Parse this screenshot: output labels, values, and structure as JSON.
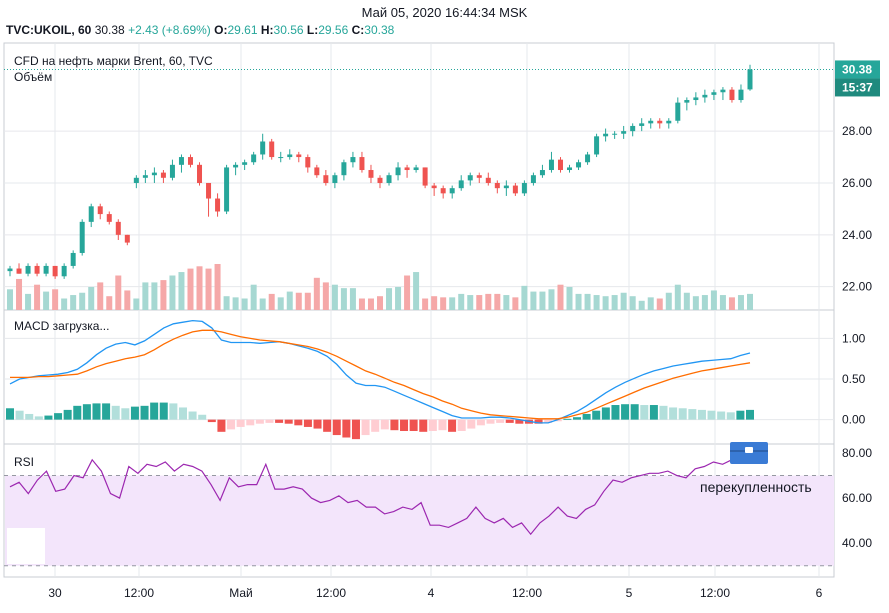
{
  "header": {
    "datetime": "Май 05, 2020 16:44:34 MSK",
    "symbol": "TVC:UKOIL, 60",
    "last": "30.38",
    "change": "+2.43 (+8.69%)",
    "o_label": "O:",
    "o_value": "29.61",
    "h_label": "H:",
    "h_value": "30.56",
    "l_label": "L:",
    "l_value": "29.56",
    "c_label": "C:",
    "c_value": "30.38"
  },
  "colors": {
    "up": "#26a69a",
    "down": "#ef5350",
    "vol_up": "#a6d8d2",
    "vol_down": "#f5a8a8",
    "macd": "#2196f3",
    "signal": "#ff6d00",
    "rsi": "#9c27b0",
    "rsi_band": "#f3e5fb",
    "grid": "#e6e8ec"
  },
  "main_pane": {
    "title": "CFD на нефть марки Brent, 60, TVC",
    "volume_label": "Объём",
    "price_badge": "30.38",
    "time_badge": "15:37"
  },
  "macd_pane": {
    "title": "MACD загрузка..."
  },
  "rsi_pane": {
    "title": "RSI",
    "overbought_label": "перекупленность"
  },
  "chart_data": [
    {
      "type": "candlestick",
      "title": "CFD на нефть марки Brent, 60, TVC",
      "y_ticks": [
        "30.38",
        "28.00",
        "26.00",
        "24.00",
        "22.00"
      ],
      "ylim": [
        21.1,
        31.4
      ],
      "x_tick_labels": [
        "30",
        "12:00",
        "Май",
        "12:00",
        "4",
        "12:00",
        "5",
        "12:00",
        "6"
      ],
      "candles": [
        [
          22.6,
          22.8,
          22.4,
          22.7
        ],
        [
          22.7,
          22.9,
          22.5,
          22.5
        ],
        [
          22.5,
          22.9,
          22.4,
          22.8
        ],
        [
          22.8,
          22.9,
          22.4,
          22.5
        ],
        [
          22.5,
          22.9,
          22.4,
          22.8
        ],
        [
          22.8,
          22.8,
          22.3,
          22.4
        ],
        [
          22.4,
          22.9,
          22.3,
          22.8
        ],
        [
          22.8,
          23.4,
          22.7,
          23.3
        ],
        [
          23.3,
          24.6,
          23.2,
          24.5
        ],
        [
          24.5,
          25.2,
          24.3,
          25.1
        ],
        [
          25.1,
          25.2,
          24.6,
          24.8
        ],
        [
          24.8,
          24.9,
          24.4,
          24.5
        ],
        [
          24.5,
          24.6,
          23.8,
          24.0
        ],
        [
          24.0,
          24.0,
          23.6,
          23.7
        ],
        [
          26.0,
          26.3,
          25.8,
          26.2
        ],
        [
          26.2,
          26.5,
          26.0,
          26.3
        ],
        [
          26.3,
          26.6,
          26.0,
          26.4
        ],
        [
          26.4,
          26.5,
          26.0,
          26.2
        ],
        [
          26.2,
          26.9,
          26.1,
          26.7
        ],
        [
          26.7,
          27.1,
          26.4,
          27.0
        ],
        [
          27.0,
          27.1,
          26.6,
          26.7
        ],
        [
          26.7,
          26.8,
          25.9,
          26.0
        ],
        [
          26.0,
          26.0,
          24.7,
          25.4
        ],
        [
          25.4,
          25.6,
          24.7,
          24.9
        ],
        [
          24.9,
          26.7,
          24.8,
          26.6
        ],
        [
          26.6,
          26.8,
          26.3,
          26.7
        ],
        [
          26.7,
          26.9,
          26.5,
          26.8
        ],
        [
          26.8,
          27.2,
          26.7,
          27.1
        ],
        [
          27.1,
          27.9,
          26.9,
          27.6
        ],
        [
          27.6,
          27.7,
          26.9,
          27.0
        ],
        [
          27.0,
          27.2,
          26.8,
          27.0
        ],
        [
          27.0,
          27.3,
          26.9,
          27.1
        ],
        [
          27.1,
          27.2,
          26.8,
          27.0
        ],
        [
          27.0,
          27.1,
          26.4,
          26.6
        ],
        [
          26.6,
          26.7,
          26.2,
          26.3
        ],
        [
          26.3,
          26.5,
          25.9,
          26.0
        ],
        [
          26.0,
          26.4,
          25.8,
          26.3
        ],
        [
          26.3,
          26.9,
          26.1,
          26.8
        ],
        [
          26.8,
          27.2,
          26.6,
          27.0
        ],
        [
          27.0,
          27.2,
          26.4,
          26.5
        ],
        [
          26.5,
          26.7,
          26.0,
          26.2
        ],
        [
          26.2,
          26.3,
          25.8,
          26.0
        ],
        [
          26.0,
          26.4,
          25.9,
          26.3
        ],
        [
          26.3,
          26.8,
          26.1,
          26.6
        ],
        [
          26.6,
          26.7,
          26.2,
          26.5
        ],
        [
          26.5,
          26.7,
          26.4,
          26.6
        ],
        [
          26.6,
          26.6,
          25.8,
          25.9
        ],
        [
          25.9,
          26.0,
          25.5,
          25.8
        ],
        [
          25.8,
          25.9,
          25.4,
          25.6
        ],
        [
          25.6,
          25.9,
          25.4,
          25.8
        ],
        [
          25.8,
          26.3,
          25.7,
          26.1
        ],
        [
          26.1,
          26.4,
          25.9,
          26.3
        ],
        [
          26.3,
          26.4,
          26.0,
          26.2
        ],
        [
          26.2,
          26.4,
          25.9,
          26.0
        ],
        [
          26.0,
          26.1,
          25.6,
          25.8
        ],
        [
          25.8,
          26.1,
          25.5,
          25.9
        ],
        [
          25.9,
          26.0,
          25.5,
          25.6
        ],
        [
          25.6,
          26.1,
          25.5,
          26.0
        ],
        [
          26.0,
          26.4,
          25.9,
          26.3
        ],
        [
          26.3,
          26.7,
          26.2,
          26.5
        ],
        [
          26.5,
          27.2,
          26.4,
          26.9
        ],
        [
          26.9,
          27.0,
          26.4,
          26.5
        ],
        [
          26.5,
          26.7,
          26.4,
          26.6
        ],
        [
          26.6,
          26.9,
          26.5,
          26.8
        ],
        [
          26.8,
          27.2,
          26.7,
          27.1
        ],
        [
          27.1,
          27.9,
          27.0,
          27.8
        ],
        [
          27.8,
          28.1,
          27.6,
          27.9
        ],
        [
          27.9,
          28.0,
          27.7,
          27.9
        ],
        [
          27.9,
          28.2,
          27.7,
          28.0
        ],
        [
          28.0,
          28.3,
          27.8,
          28.2
        ],
        [
          28.2,
          28.5,
          28.0,
          28.3
        ],
        [
          28.3,
          28.5,
          28.1,
          28.4
        ],
        [
          28.4,
          28.5,
          28.1,
          28.3
        ],
        [
          28.3,
          28.5,
          28.1,
          28.4
        ],
        [
          28.4,
          29.3,
          28.3,
          29.1
        ],
        [
          29.1,
          29.3,
          28.8,
          29.2
        ],
        [
          29.2,
          29.5,
          29.0,
          29.3
        ],
        [
          29.3,
          29.6,
          29.1,
          29.4
        ],
        [
          29.4,
          29.6,
          29.2,
          29.5
        ],
        [
          29.5,
          29.7,
          29.2,
          29.6
        ],
        [
          29.6,
          29.7,
          29.1,
          29.2
        ],
        [
          29.2,
          29.8,
          29.1,
          29.6
        ],
        [
          29.61,
          30.56,
          29.56,
          30.38
        ]
      ],
      "volume": [
        18,
        27,
        14,
        22,
        16,
        18,
        10,
        13,
        15,
        20,
        24,
        12,
        30,
        17,
        10,
        24,
        24,
        26,
        30,
        33,
        36,
        38,
        36,
        40,
        12,
        11,
        10,
        22,
        10,
        14,
        11,
        16,
        15,
        15,
        28,
        24,
        22,
        19,
        19,
        10,
        10,
        12,
        19,
        20,
        30,
        33,
        10,
        12,
        11,
        11,
        14,
        13,
        13,
        14,
        14,
        13,
        11,
        21,
        16,
        16,
        18,
        22,
        20,
        14,
        14,
        13,
        12,
        13,
        15,
        12,
        8,
        11,
        10,
        15,
        22,
        15,
        12,
        13,
        17,
        13,
        11,
        13,
        14
      ],
      "volume_direction": [
        1,
        0,
        1,
        0,
        1,
        0,
        1,
        1,
        1,
        1,
        0,
        0,
        0,
        0,
        1,
        1,
        1,
        0,
        1,
        1,
        0,
        0,
        0,
        0,
        1,
        1,
        1,
        1,
        1,
        0,
        1,
        1,
        0,
        0,
        0,
        0,
        1,
        1,
        1,
        0,
        0,
        0,
        1,
        1,
        0,
        1,
        0,
        0,
        0,
        1,
        1,
        1,
        0,
        0,
        0,
        1,
        0,
        1,
        1,
        1,
        1,
        0,
        1,
        1,
        1,
        1,
        1,
        1,
        1,
        1,
        1,
        1,
        0,
        1,
        1,
        1,
        1,
        1,
        1,
        1,
        0,
        1,
        1
      ]
    },
    {
      "type": "macd",
      "title": "MACD загрузка...",
      "y_ticks": [
        "1.00",
        "0.50",
        "0.00"
      ],
      "ylim": [
        -0.3,
        1.35
      ],
      "series": [
        {
          "values": [
            0.44,
            0.5,
            0.52,
            0.54,
            0.55,
            0.56,
            0.58,
            0.62,
            0.7,
            0.8,
            0.88,
            0.93,
            0.95,
            0.92,
            0.97,
            1.05,
            1.13,
            1.18,
            1.2,
            1.22,
            1.21,
            1.13,
            0.98,
            0.95,
            0.95,
            0.95,
            0.94,
            0.95,
            0.96,
            0.94,
            0.91,
            0.88,
            0.84,
            0.78,
            0.68,
            0.55,
            0.45,
            0.42,
            0.42,
            0.4,
            0.35,
            0.3,
            0.25,
            0.2,
            0.15,
            0.1,
            0.05,
            0.02,
            0.02,
            0.02,
            0.03,
            0.03,
            0.02,
            0.0,
            -0.02,
            -0.04,
            -0.04,
            0.0,
            0.05,
            0.1,
            0.17,
            0.25,
            0.33,
            0.4,
            0.46,
            0.51,
            0.56,
            0.6,
            0.63,
            0.66,
            0.68,
            0.7,
            0.72,
            0.73,
            0.74,
            0.75,
            0.79,
            0.82
          ]
        },
        {
          "values": [
            0.52,
            0.52,
            0.52,
            0.53,
            0.53,
            0.54,
            0.55,
            0.56,
            0.6,
            0.65,
            0.69,
            0.72,
            0.75,
            0.77,
            0.8,
            0.86,
            0.93,
            0.99,
            1.04,
            1.08,
            1.1,
            1.1,
            1.08,
            1.05,
            1.02,
            1.0,
            0.98,
            0.97,
            0.96,
            0.94,
            0.92,
            0.9,
            0.87,
            0.83,
            0.78,
            0.72,
            0.66,
            0.6,
            0.56,
            0.51,
            0.46,
            0.42,
            0.37,
            0.32,
            0.28,
            0.23,
            0.19,
            0.14,
            0.11,
            0.08,
            0.06,
            0.05,
            0.04,
            0.03,
            0.02,
            0.01,
            0.01,
            0.01,
            0.03,
            0.06,
            0.09,
            0.14,
            0.19,
            0.24,
            0.29,
            0.34,
            0.39,
            0.43,
            0.47,
            0.51,
            0.54,
            0.57,
            0.6,
            0.62,
            0.64,
            0.66,
            0.68,
            0.7
          ]
        }
      ],
      "histogram": [
        0.14,
        0.11,
        0.07,
        0.04,
        0.05,
        0.08,
        0.12,
        0.17,
        0.19,
        0.2,
        0.2,
        0.17,
        0.14,
        0.16,
        0.17,
        0.21,
        0.21,
        0.2,
        0.15,
        0.1,
        0.06,
        -0.03,
        -0.15,
        -0.12,
        -0.09,
        -0.07,
        -0.05,
        -0.04,
        -0.04,
        -0.05,
        -0.07,
        -0.09,
        -0.11,
        -0.15,
        -0.19,
        -0.22,
        -0.24,
        -0.19,
        -0.15,
        -0.12,
        -0.13,
        -0.14,
        -0.14,
        -0.15,
        -0.14,
        -0.13,
        -0.15,
        -0.14,
        -0.11,
        -0.07,
        -0.05,
        -0.04,
        -0.04,
        -0.05,
        -0.05,
        -0.05,
        -0.04,
        -0.02,
        0.01,
        0.03,
        0.07,
        0.11,
        0.15,
        0.18,
        0.19,
        0.19,
        0.18,
        0.18,
        0.17,
        0.15,
        0.14,
        0.13,
        0.12,
        0.11,
        0.1,
        0.09,
        0.11,
        0.12
      ]
    },
    {
      "type": "line",
      "title": "RSI",
      "y_ticks": [
        "80.00",
        "60.00",
        "40.00"
      ],
      "ylim": [
        25,
        84
      ],
      "band": [
        30,
        70
      ],
      "values": [
        65,
        67,
        62,
        68,
        72,
        63,
        64,
        70,
        69,
        77,
        72,
        62,
        60,
        74,
        71,
        75,
        74,
        76,
        72,
        75,
        74,
        72,
        66,
        59,
        69,
        65,
        66,
        66,
        75,
        64,
        64,
        65,
        64,
        60,
        58,
        59,
        61,
        58,
        59,
        56,
        56,
        53,
        54,
        56,
        55,
        58,
        48,
        48,
        47,
        49,
        51,
        56,
        51,
        49,
        51,
        47,
        49,
        44,
        49,
        52,
        56,
        52,
        51,
        55,
        57,
        63,
        68,
        67,
        69,
        70,
        71,
        71,
        72,
        70,
        69,
        73,
        74,
        76,
        75,
        77,
        79,
        82
      ]
    }
  ]
}
